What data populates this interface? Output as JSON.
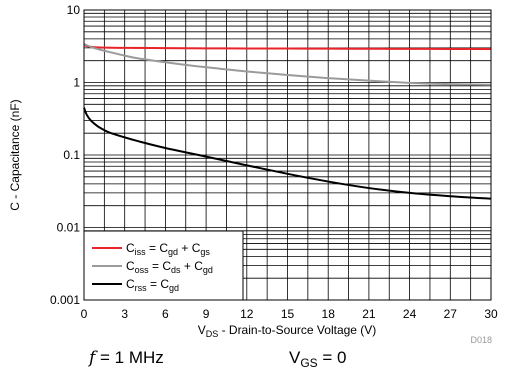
{
  "chart_data": {
    "type": "line",
    "title": "",
    "ylabel": "C - Capacitance (nF)",
    "xlabel": {
      "prefix": "V",
      "sub": "DS",
      "rest": " - Drain-to-Source Voltage (V)"
    },
    "x_ticks": [
      "0",
      "3",
      "6",
      "9",
      "12",
      "15",
      "18",
      "21",
      "24",
      "27",
      "30"
    ],
    "y_ticks": [
      "0.001",
      "0.01",
      "0.1",
      "1",
      "10"
    ],
    "xlim": [
      0,
      30
    ],
    "ylim": [
      0.001,
      10
    ],
    "y_scale": "log",
    "grid": true,
    "legend_placement": "bottom-left",
    "series": [
      {
        "label": {
          "main": "C",
          "sub": "iss",
          "eq": " = C",
          "sub2": "gd",
          "plus": " + C",
          "sub3": "gs"
        },
        "color": "#e8242a",
        "x": [
          0,
          0.3,
          1,
          3,
          6,
          9,
          12,
          15,
          18,
          21,
          24,
          27,
          30
        ],
        "y": [
          3.3,
          3.15,
          3.05,
          3.0,
          2.98,
          2.96,
          2.95,
          2.94,
          2.93,
          2.92,
          2.91,
          2.9,
          2.9
        ]
      },
      {
        "label": {
          "main": "C",
          "sub": "oss",
          "eq": " = C",
          "sub2": "ds",
          "plus": " + C",
          "sub3": "gd"
        },
        "color": "#9b9b9b",
        "x": [
          0,
          0.5,
          1,
          2,
          3,
          4,
          6,
          8,
          10,
          12,
          15,
          18,
          21,
          24,
          27,
          30
        ],
        "y": [
          3.4,
          3.1,
          2.9,
          2.6,
          2.35,
          2.15,
          1.9,
          1.7,
          1.55,
          1.42,
          1.27,
          1.15,
          1.06,
          0.99,
          0.95,
          0.93
        ]
      },
      {
        "label": {
          "main": "C",
          "sub": "rss",
          "eq": " = C",
          "sub2": "gd",
          "plus": "",
          "sub3": ""
        },
        "color": "#000000",
        "x": [
          0,
          0.2,
          0.5,
          1,
          1.5,
          2,
          3,
          4,
          6,
          9,
          12,
          15,
          18,
          21,
          24,
          27,
          30
        ],
        "y": [
          0.45,
          0.36,
          0.3,
          0.25,
          0.22,
          0.2,
          0.175,
          0.155,
          0.125,
          0.095,
          0.072,
          0.055,
          0.043,
          0.035,
          0.03,
          0.027,
          0.025
        ]
      }
    ],
    "figure_code": "D018"
  },
  "conditions": {
    "freq": {
      "symbol": "f",
      "text": " = 1 MHz"
    },
    "vgs": {
      "prefix": "V",
      "sub": "GS",
      "text": " = 0"
    }
  }
}
